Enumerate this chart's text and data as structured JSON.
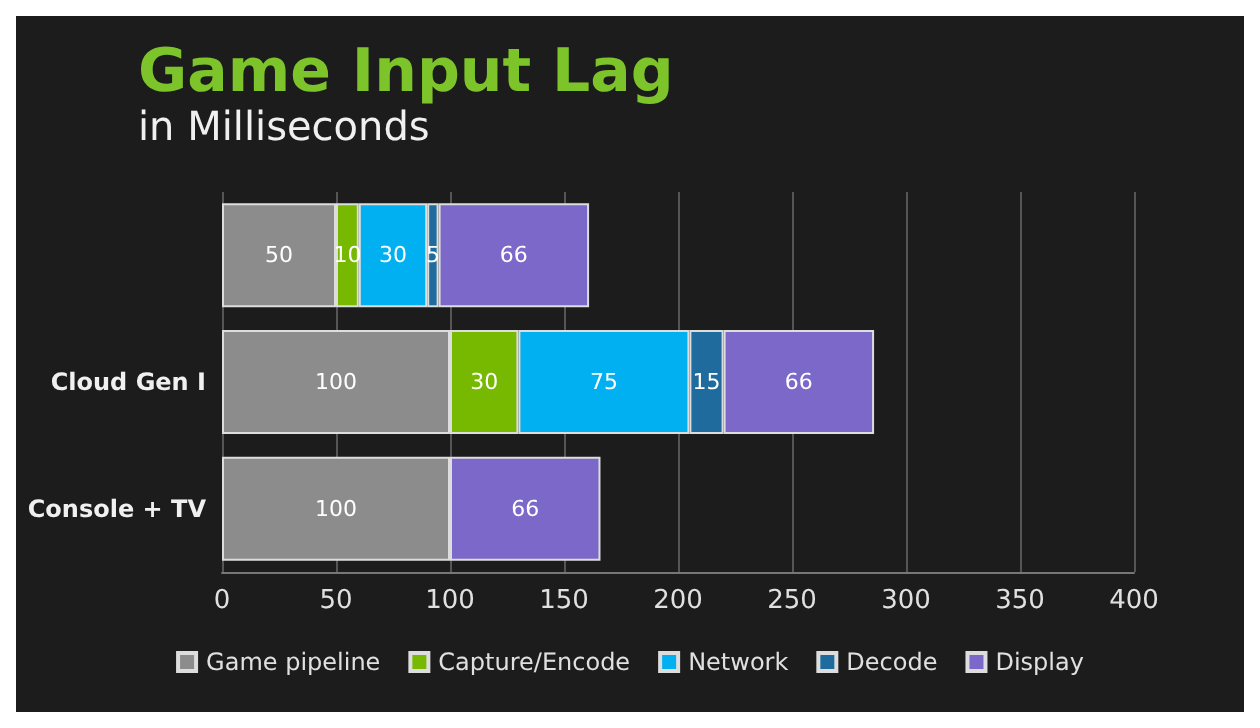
{
  "chart_data": {
    "type": "bar",
    "title": "Game Input Lag",
    "subtitle": "in Milliseconds",
    "orientation": "horizontal",
    "stacked": true,
    "data_labels": true,
    "categories": [
      null,
      "Cloud Gen I",
      "Console + TV"
    ],
    "series": [
      {
        "name": "Game pipeline",
        "color": "#8c8c8c",
        "values": [
          50,
          100,
          100
        ]
      },
      {
        "name": "Capture/Encode",
        "color": "#76b900",
        "values": [
          10,
          30,
          null
        ]
      },
      {
        "name": "Network",
        "color": "#00b0f0",
        "values": [
          30,
          75,
          null
        ]
      },
      {
        "name": "Decode",
        "color": "#1f6b9e",
        "values": [
          5,
          15,
          null
        ]
      },
      {
        "name": "Display",
        "color": "#7b68c8",
        "values": [
          66,
          66,
          66
        ]
      }
    ],
    "xlim": [
      0,
      400
    ],
    "xticks": [
      0,
      50,
      100,
      150,
      200,
      250,
      300,
      350,
      400
    ],
    "grid": "x",
    "legend": "bottom"
  }
}
